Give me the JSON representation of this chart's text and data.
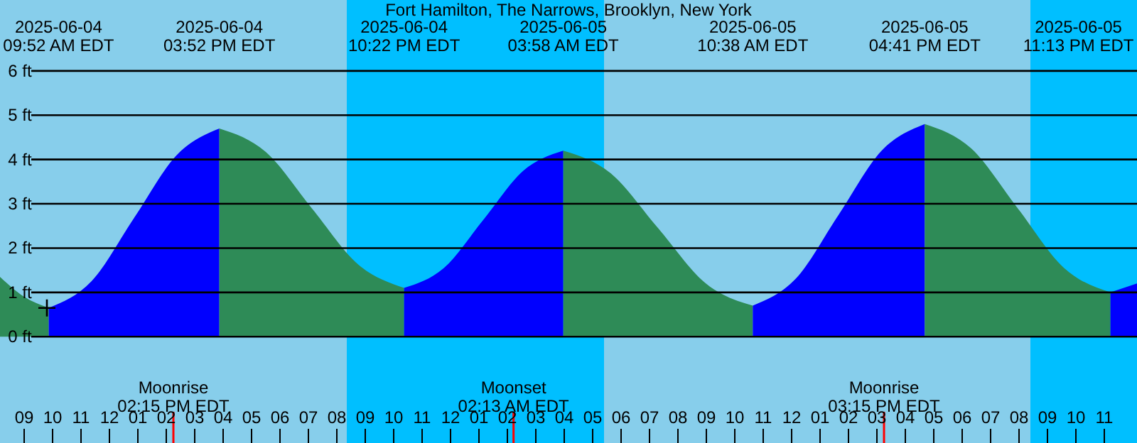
{
  "chart_data": {
    "type": "area",
    "title": "Fort Hamilton, The Narrows, Brooklyn, New York",
    "xlim": [
      "2025-06-04T08:09",
      "2025-06-06T00:09"
    ],
    "ylim": [
      -2.4,
      7.6
    ],
    "yticks": [
      {
        "value": 0,
        "label": "0 ft"
      },
      {
        "value": 1,
        "label": "1 ft"
      },
      {
        "value": 2,
        "label": "2 ft"
      },
      {
        "value": 3,
        "label": "3 ft"
      },
      {
        "value": 4,
        "label": "4 ft"
      },
      {
        "value": 5,
        "label": "5 ft"
      },
      {
        "value": 6,
        "label": "6 ft"
      }
    ],
    "xticks": [
      {
        "value": "2025-06-04T09:00",
        "label": "09"
      },
      {
        "value": "2025-06-04T10:00",
        "label": "10"
      },
      {
        "value": "2025-06-04T11:00",
        "label": "11"
      },
      {
        "value": "2025-06-04T12:00",
        "label": "12"
      },
      {
        "value": "2025-06-04T13:00",
        "label": "01"
      },
      {
        "value": "2025-06-04T14:00",
        "label": "02"
      },
      {
        "value": "2025-06-04T15:00",
        "label": "03"
      },
      {
        "value": "2025-06-04T16:00",
        "label": "04"
      },
      {
        "value": "2025-06-04T17:00",
        "label": "05"
      },
      {
        "value": "2025-06-04T18:00",
        "label": "06"
      },
      {
        "value": "2025-06-04T19:00",
        "label": "07"
      },
      {
        "value": "2025-06-04T20:00",
        "label": "08"
      },
      {
        "value": "2025-06-04T21:00",
        "label": "09"
      },
      {
        "value": "2025-06-04T22:00",
        "label": "10"
      },
      {
        "value": "2025-06-04T23:00",
        "label": "11"
      },
      {
        "value": "2025-06-05T00:00",
        "label": "12"
      },
      {
        "value": "2025-06-05T01:00",
        "label": "01"
      },
      {
        "value": "2025-06-05T02:00",
        "label": "02"
      },
      {
        "value": "2025-06-05T03:00",
        "label": "03"
      },
      {
        "value": "2025-06-05T04:00",
        "label": "04"
      },
      {
        "value": "2025-06-05T05:00",
        "label": "05"
      },
      {
        "value": "2025-06-05T06:00",
        "label": "06"
      },
      {
        "value": "2025-06-05T07:00",
        "label": "07"
      },
      {
        "value": "2025-06-05T08:00",
        "label": "08"
      },
      {
        "value": "2025-06-05T09:00",
        "label": "09"
      },
      {
        "value": "2025-06-05T10:00",
        "label": "10"
      },
      {
        "value": "2025-06-05T11:00",
        "label": "11"
      },
      {
        "value": "2025-06-05T12:00",
        "label": "12"
      },
      {
        "value": "2025-06-05T13:00",
        "label": "01"
      },
      {
        "value": "2025-06-05T14:00",
        "label": "02"
      },
      {
        "value": "2025-06-05T15:00",
        "label": "03"
      },
      {
        "value": "2025-06-05T16:00",
        "label": "04"
      },
      {
        "value": "2025-06-05T17:00",
        "label": "05"
      },
      {
        "value": "2025-06-05T18:00",
        "label": "06"
      },
      {
        "value": "2025-06-05T19:00",
        "label": "07"
      },
      {
        "value": "2025-06-05T20:00",
        "label": "08"
      },
      {
        "value": "2025-06-05T21:00",
        "label": "09"
      },
      {
        "value": "2025-06-05T22:00",
        "label": "10"
      },
      {
        "value": "2025-06-05T23:00",
        "label": "11"
      }
    ],
    "grid": "y",
    "stacked": false,
    "bands": [
      {
        "axis": "x",
        "from": "2025-06-04T20:21",
        "to": "2025-06-05T05:24",
        "color": "#00bfff"
      },
      {
        "axis": "x",
        "from": "2025-06-05T20:24",
        "to": "2025-06-06T00:09",
        "color": "#00bfff"
      }
    ],
    "ref_lines": [
      {
        "axis": "x",
        "value": "2025-06-04T14:15",
        "label": "Moonrise\n02:15 PM EDT",
        "color": "#ff0000"
      },
      {
        "axis": "x",
        "value": "2025-06-05T02:13",
        "label": "Moonset\n02:13 AM EDT",
        "color": "#ff0000"
      },
      {
        "axis": "x",
        "value": "2025-06-05T15:15",
        "label": "Moonrise\n03:15 PM EDT",
        "color": "#ff0000"
      }
    ],
    "series": [
      {
        "color": "#2e8b57",
        "x": [
          "2025-06-04T08:09",
          "2025-06-04T09:00",
          "2025-06-04T09:52"
        ],
        "values": [
          1.35,
          0.9,
          0.65
        ]
      },
      {
        "color": "#0000ff",
        "x": [
          "2025-06-04T09:52",
          "2025-06-04T11:22",
          "2025-06-04T12:52",
          "2025-06-04T14:22",
          "2025-06-04T15:52"
        ],
        "values": [
          0.65,
          1.25,
          2.68,
          4.1,
          4.7
        ]
      },
      {
        "color": "#2e8b57",
        "x": [
          "2025-06-04T15:52",
          "2025-06-04T17:30",
          "2025-06-04T19:07",
          "2025-06-04T20:45",
          "2025-06-04T22:22"
        ],
        "values": [
          4.7,
          4.17,
          2.9,
          1.63,
          1.1
        ]
      },
      {
        "color": "#0000ff",
        "x": [
          "2025-06-04T22:22",
          "2025-06-04T23:46",
          "2025-06-05T01:10",
          "2025-06-05T02:34",
          "2025-06-05T03:58"
        ],
        "values": [
          1.1,
          1.55,
          2.65,
          3.75,
          4.2
        ]
      },
      {
        "color": "#2e8b57",
        "x": [
          "2025-06-05T03:58",
          "2025-06-05T05:38",
          "2025-06-05T07:18",
          "2025-06-05T08:58",
          "2025-06-05T10:38"
        ],
        "values": [
          4.2,
          3.69,
          2.45,
          1.21,
          0.7
        ]
      },
      {
        "color": "#0000ff",
        "x": [
          "2025-06-05T10:38",
          "2025-06-05T12:08",
          "2025-06-05T13:39",
          "2025-06-05T15:10",
          "2025-06-05T16:41"
        ],
        "values": [
          0.7,
          1.3,
          2.75,
          4.2,
          4.8
        ]
      },
      {
        "color": "#2e8b57",
        "x": [
          "2025-06-05T16:41",
          "2025-06-05T18:19",
          "2025-06-05T19:57",
          "2025-06-05T21:35",
          "2025-06-05T23:13"
        ],
        "values": [
          4.8,
          4.25,
          2.9,
          1.55,
          1.0
        ]
      },
      {
        "color": "#0000ff",
        "x": [
          "2025-06-05T23:13",
          "2025-06-06T00:09"
        ],
        "values": [
          1.0,
          1.2
        ]
      },
      {
        "type": "scatter",
        "marker": "cross",
        "color": "#000000",
        "x": [
          "2025-06-04T09:48"
        ],
        "values": [
          0.65
        ]
      }
    ],
    "annotations": [
      "2025-06-04\n09:52 AM EDT",
      "2025-06-04\n03:52 PM EDT",
      "2025-06-04\n10:22 PM EDT",
      "2025-06-05\n03:58 AM EDT",
      "2025-06-05\n10:38 AM EDT",
      "2025-06-05\n04:41 PM EDT",
      "2025-06-05\n11:13 PM EDT"
    ]
  }
}
